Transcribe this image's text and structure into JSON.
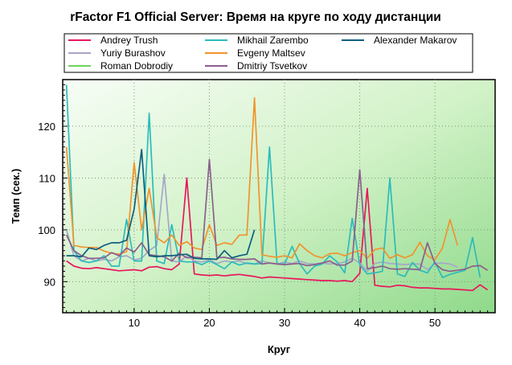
{
  "chart_data": {
    "type": "line",
    "title": "rFactor F1 Official Server: Время на круге по ходу дистанции",
    "xlabel": "Круг",
    "ylabel": "Темп (сек.)",
    "xlim": [
      0.5,
      58
    ],
    "ylim": [
      84,
      129
    ],
    "xticks": [
      10,
      20,
      30,
      40,
      50
    ],
    "yticks": [
      90,
      100,
      110,
      120
    ],
    "grid": true,
    "legend_position": "top",
    "series": [
      {
        "name": "Andrey Trush",
        "color": "#e8175d",
        "values": [
          94,
          93,
          92.6,
          92.5,
          92.7,
          92.5,
          92.3,
          92.1,
          92.2,
          92.3,
          92.1,
          92.8,
          92.9,
          92.5,
          92.3,
          93.4,
          110,
          91.5,
          91.3,
          91.2,
          91.3,
          91.1,
          91.3,
          91.4,
          91.2,
          91.0,
          90.7,
          90.9,
          90.8,
          90.7,
          90.6,
          90.5,
          90.4,
          90.3,
          90.2,
          90.2,
          90.1,
          90.2,
          90.0,
          91.6,
          108,
          89.3,
          89.1,
          89,
          89.3,
          89.2,
          88.9,
          88.8,
          88.8,
          88.7,
          88.6,
          88.6,
          88.5,
          88.4,
          88.3,
          89.4,
          88.4
        ]
      },
      {
        "name": "Yuriy Burashov",
        "color": "#a6a6c8",
        "values": [
          100,
          95,
          94,
          94.5,
          94,
          94.3,
          94,
          94.8,
          95,
          94.2,
          94.5,
          96,
          97,
          110.7,
          94,
          93.8,
          95,
          94,
          93.8,
          94.2,
          93.5,
          94,
          93.8,
          94,
          93.5,
          93.4,
          94,
          93.6,
          93.4,
          93.8,
          93.5,
          94,
          93.5,
          93.4,
          93.6,
          93.4,
          93.5,
          93.8,
          94.5,
          93.6,
          92,
          93.5,
          93.8,
          93.5,
          93.4,
          93.3,
          93.4,
          93.4,
          92.3,
          93.5,
          93.6,
          93.4,
          92.8
        ]
      },
      {
        "name": "Roman Dobrodiy",
        "color": "#6ed35e",
        "values": []
      },
      {
        "name": "Mikhail Zarembo",
        "color": "#2bbcbc",
        "values": [
          128,
          96,
          94,
          93.7,
          94,
          95,
          93,
          93,
          102,
          94,
          94,
          122.5,
          94,
          93.5,
          101,
          94,
          93.8,
          93.8,
          93.3,
          94,
          93.3,
          92.5,
          93.8,
          93.2,
          93.6,
          93.4,
          93.5,
          116,
          93.4,
          93.4,
          96.8,
          93.5,
          91.5,
          93,
          93.4,
          95,
          93.8,
          91.7,
          102.2,
          93.2,
          91.5,
          91.7,
          92.0,
          110,
          91.5,
          91.0,
          93.7,
          92.2,
          91.7,
          93.8,
          90.8,
          91.4,
          91.8,
          92.2,
          98.5,
          90.8
        ]
      },
      {
        "name": "Evgeny Maltsev",
        "color": "#f0942e",
        "values": [
          116,
          97,
          96.7,
          96.6,
          96.6,
          95.9,
          95.5,
          95.3,
          95.8,
          113,
          100,
          108,
          98.5,
          97.5,
          99,
          97,
          97.7,
          96.5,
          96.2,
          101,
          97,
          97.5,
          97.2,
          99,
          99,
          125.5,
          95.2,
          94.9,
          94.7,
          95,
          94.6,
          97.3,
          96,
          95,
          94.6,
          95.4,
          95.5,
          95,
          95.6,
          96,
          94.5,
          96.2,
          96.5,
          94.5,
          95.2,
          94.6,
          95.2,
          97.6,
          95,
          94.2,
          96.5,
          102,
          97
        ]
      },
      {
        "name": "Dmitriy Tsvetkov",
        "color": "#8b5e8e",
        "values": [
          99,
          96,
          95,
          94.5,
          94.5,
          94.6,
          95.6,
          95,
          96.5,
          95.7,
          97.5,
          95.2,
          95,
          94.8,
          94,
          95.5,
          94.6,
          94.7,
          94.6,
          113.6,
          94.6,
          94.7,
          94.4,
          94.3,
          94.3,
          94.4,
          93.4,
          93.6,
          93.4,
          93.3,
          93.4,
          93.5,
          93.1,
          93.3,
          93.6,
          94,
          93.2,
          93.2,
          94,
          111.6,
          92.5,
          92.7,
          93,
          92.5,
          92.4,
          92.5,
          92.4,
          92.3,
          97.5,
          93.5,
          92.3,
          92.0,
          92.2,
          92.4,
          93.0,
          93.1,
          92.2
        ]
      },
      {
        "name": "Alexander Makarov",
        "color": "#0d5f80",
        "values": [
          95,
          95,
          94.8,
          96.5,
          96.2,
          97,
          97.5,
          97.5,
          98,
          104,
          115.5,
          95,
          94.8,
          95,
          95,
          95.2,
          95.3,
          94.5,
          94.4,
          94.4,
          94.3,
          96,
          94.6,
          95,
          95.3,
          100
        ]
      }
    ]
  }
}
